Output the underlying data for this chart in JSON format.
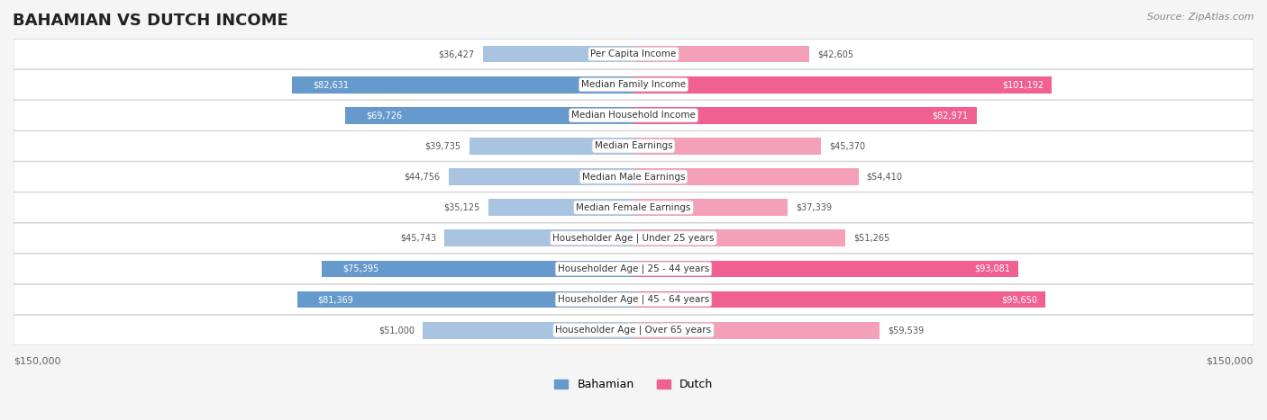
{
  "title": "BAHAMIAN VS DUTCH INCOME",
  "source": "Source: ZipAtlas.com",
  "categories": [
    "Per Capita Income",
    "Median Family Income",
    "Median Household Income",
    "Median Earnings",
    "Median Male Earnings",
    "Median Female Earnings",
    "Householder Age | Under 25 years",
    "Householder Age | 25 - 44 years",
    "Householder Age | 45 - 64 years",
    "Householder Age | Over 65 years"
  ],
  "bahamian": [
    36427,
    82631,
    69726,
    39735,
    44756,
    35125,
    45743,
    75395,
    81369,
    51000
  ],
  "dutch": [
    42605,
    101192,
    82971,
    45370,
    54410,
    37339,
    51265,
    93081,
    99650,
    59539
  ],
  "max_val": 150000,
  "bahamian_color_light": "#a8c4e0",
  "bahamian_color_dark": "#6699cc",
  "dutch_color_light": "#f4a0b8",
  "dutch_color_dark": "#f06090",
  "bg_color": "#f5f5f5",
  "row_bg": "#ffffff",
  "label_bg": "#ffffff",
  "bar_height": 0.55,
  "legend_bahamian": "Bahamian",
  "legend_dutch": "Dutch"
}
